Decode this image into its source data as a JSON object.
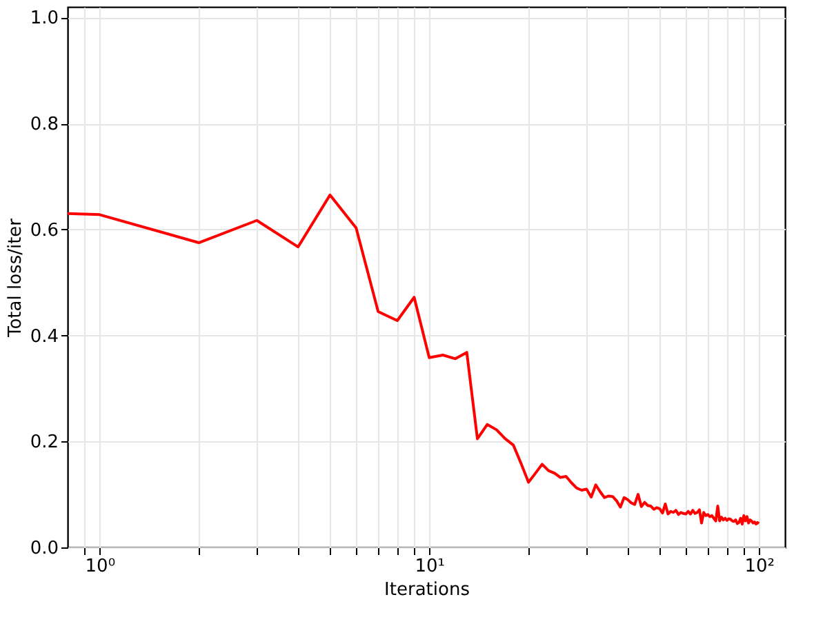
{
  "chart_data": {
    "type": "line",
    "xlabel": "Iterations",
    "ylabel": "Total loss/iter",
    "log": "x",
    "grid": true,
    "line_style": "solid",
    "marker": "none",
    "xlim": [
      0.8,
      120
    ],
    "ylim": [
      0,
      1.02
    ],
    "xticks": [
      {
        "value": 0.9,
        "label": null
      },
      {
        "value": 1,
        "label": "10⁰"
      },
      {
        "value": 2,
        "label": null
      },
      {
        "value": 3,
        "label": null
      },
      {
        "value": 4,
        "label": null
      },
      {
        "value": 5,
        "label": null
      },
      {
        "value": 6,
        "label": null
      },
      {
        "value": 7,
        "label": null
      },
      {
        "value": 8,
        "label": null
      },
      {
        "value": 9,
        "label": null
      },
      {
        "value": 10,
        "label": "10¹"
      },
      {
        "value": 20,
        "label": null
      },
      {
        "value": 30,
        "label": null
      },
      {
        "value": 40,
        "label": null
      },
      {
        "value": 50,
        "label": null
      },
      {
        "value": 60,
        "label": null
      },
      {
        "value": 70,
        "label": null
      },
      {
        "value": 80,
        "label": null
      },
      {
        "value": 90,
        "label": null
      },
      {
        "value": 100,
        "label": "10²"
      }
    ],
    "yticks": [
      {
        "value": 0,
        "label": "0.0"
      },
      0.2,
      0.4,
      0.6,
      0.8,
      {
        "value": 1,
        "label": "1.0"
      }
    ],
    "x": [
      0.8,
      1,
      2,
      3,
      4,
      5,
      6,
      7,
      8,
      9,
      10,
      11,
      12,
      13,
      14,
      15,
      16,
      17,
      18,
      19,
      20,
      21,
      22,
      23,
      24,
      25,
      26,
      27,
      28,
      29,
      30,
      31,
      32,
      33,
      34,
      35,
      36,
      37,
      38,
      39,
      40,
      41,
      42,
      43,
      44,
      45,
      46,
      47,
      48,
      49,
      50,
      51,
      52,
      53,
      54,
      55,
      56,
      57,
      58,
      59,
      60,
      61,
      62,
      63,
      64,
      65,
      66,
      67,
      68,
      69,
      70,
      71,
      72,
      73,
      74,
      75,
      76,
      77,
      78,
      79,
      80,
      81,
      82,
      83,
      84,
      85,
      86,
      87,
      88,
      89,
      90,
      91,
      92,
      93,
      94,
      95,
      96,
      97,
      98,
      99,
      100
    ],
    "series": [
      {
        "color": "#ff0000",
        "values": [
          0.63,
          0.628,
          0.575,
          0.617,
          0.567,
          0.665,
          0.603,
          0.445,
          0.428,
          0.472,
          0.358,
          0.363,
          0.356,
          0.368,
          0.205,
          0.232,
          0.222,
          0.205,
          0.193,
          0.158,
          0.123,
          0.14,
          0.157,
          0.145,
          0.14,
          0.132,
          0.134,
          0.122,
          0.112,
          0.108,
          0.11,
          0.095,
          0.118,
          0.105,
          0.094,
          0.097,
          0.096,
          0.088,
          0.076,
          0.094,
          0.09,
          0.084,
          0.081,
          0.1,
          0.077,
          0.085,
          0.079,
          0.078,
          0.072,
          0.075,
          0.073,
          0.065,
          0.082,
          0.063,
          0.068,
          0.066,
          0.07,
          0.062,
          0.066,
          0.064,
          0.063,
          0.068,
          0.063,
          0.07,
          0.064,
          0.066,
          0.071,
          0.046,
          0.066,
          0.06,
          0.062,
          0.058,
          0.06,
          0.055,
          0.05,
          0.078,
          0.05,
          0.057,
          0.052,
          0.055,
          0.051,
          0.054,
          0.053,
          0.05,
          0.049,
          0.052,
          0.045,
          0.047,
          0.055,
          0.044,
          0.06,
          0.05,
          0.058,
          0.046,
          0.052,
          0.05,
          0.046,
          0.048,
          0.044,
          0.047,
          0.045
        ]
      }
    ]
  }
}
